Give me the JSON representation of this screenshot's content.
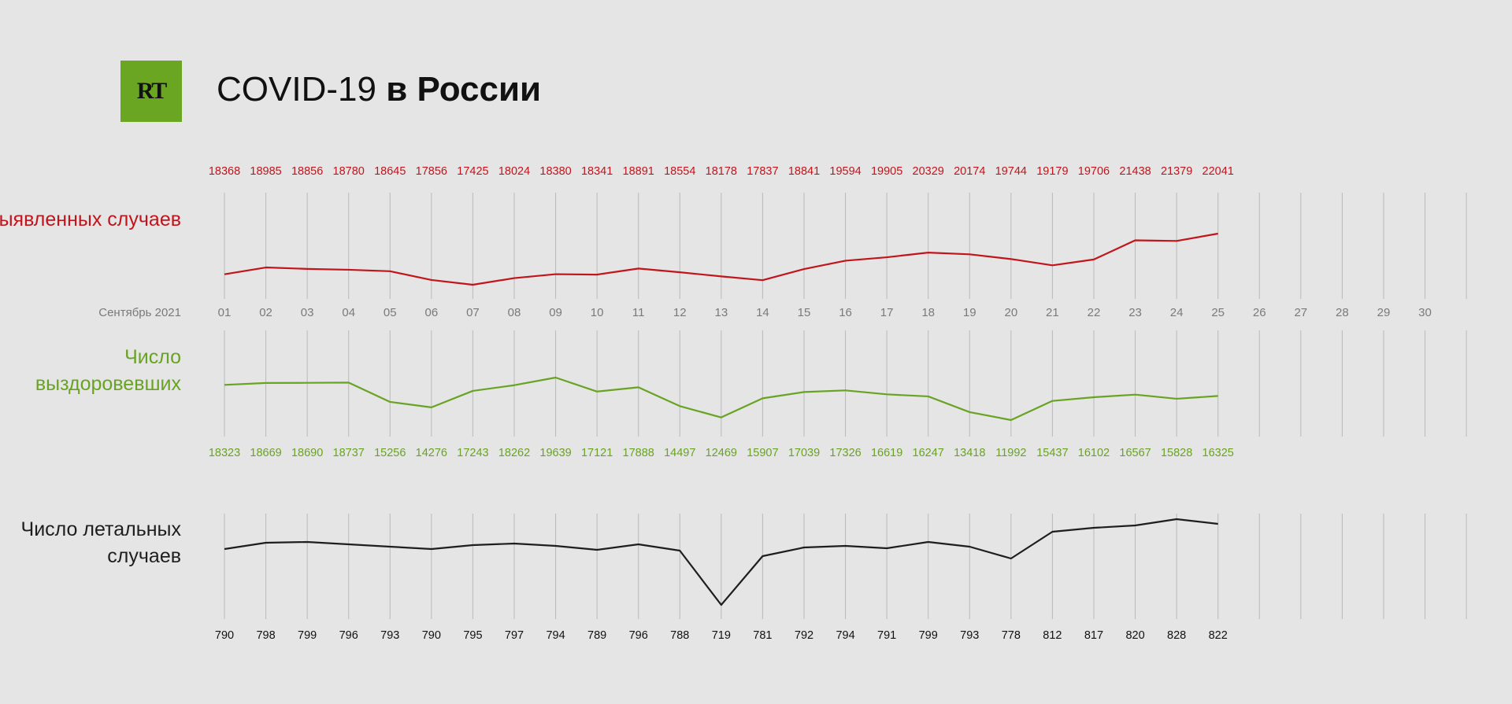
{
  "chart_data": {
    "type": "line",
    "logo": "RT",
    "title_regular": "COVID-19",
    "title_bold": "в России",
    "x_label": "Сентябрь 2021",
    "categories": [
      "01",
      "02",
      "03",
      "04",
      "05",
      "06",
      "07",
      "08",
      "09",
      "10",
      "11",
      "12",
      "13",
      "14",
      "15",
      "16",
      "17",
      "18",
      "19",
      "20",
      "21",
      "22",
      "23",
      "24",
      "25",
      "26",
      "27",
      "28",
      "29",
      "30"
    ],
    "series": [
      {
        "name": "Выявленных случаев",
        "color": "#c2141c",
        "values": [
          18368,
          18985,
          18856,
          18780,
          18645,
          17856,
          17425,
          18024,
          18380,
          18341,
          18891,
          18554,
          18178,
          17837,
          18841,
          19594,
          19905,
          20329,
          20174,
          19744,
          19179,
          19706,
          21438,
          21379,
          22041,
          null,
          null,
          null,
          null,
          null
        ]
      },
      {
        "name": "Число выздоровевших",
        "color": "#69a323",
        "values": [
          18323,
          18669,
          18690,
          18737,
          15256,
          14276,
          17243,
          18262,
          19639,
          17121,
          17888,
          14497,
          12469,
          15907,
          17039,
          17326,
          16619,
          16247,
          13418,
          11992,
          15437,
          16102,
          16567,
          15828,
          16325,
          null,
          null,
          null,
          null,
          null
        ]
      },
      {
        "name": "Число летальных случаев",
        "color": "#1e1e1e",
        "values": [
          790,
          798,
          799,
          796,
          793,
          790,
          795,
          797,
          794,
          789,
          796,
          788,
          719,
          781,
          792,
          794,
          791,
          799,
          793,
          778,
          812,
          817,
          820,
          828,
          822,
          null,
          null,
          null,
          null,
          null
        ]
      }
    ]
  }
}
